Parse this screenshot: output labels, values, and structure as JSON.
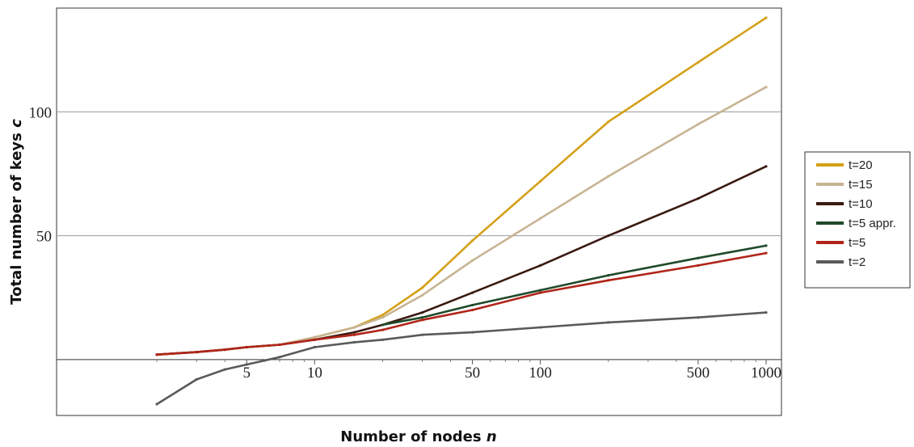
{
  "chart_data": {
    "type": "line",
    "title": "",
    "xlabel": "Number of nodes",
    "xlabel_var": "n",
    "ylabel": "Total number of keys",
    "ylabel_var": "c",
    "xscale": "log",
    "xlim": [
      1,
      1000
    ],
    "ylim": [
      -18,
      137
    ],
    "x_ticks": [
      5,
      10,
      50,
      100,
      500,
      1000
    ],
    "x_tick_labels": [
      "5",
      "10",
      "50",
      "100",
      "500",
      "1000"
    ],
    "y_ticks": [
      50,
      100
    ],
    "y_tick_labels": [
      "50",
      "100"
    ],
    "grid": "horizontal lines at y ticks",
    "legend_position": "right",
    "series": [
      {
        "name": "t=20",
        "color": "#d4a017",
        "points": [
          [
            2,
            2
          ],
          [
            3,
            3
          ],
          [
            4,
            4
          ],
          [
            5,
            5
          ],
          [
            7,
            6
          ],
          [
            10,
            9
          ],
          [
            15,
            13
          ],
          [
            20,
            18
          ],
          [
            30,
            29
          ],
          [
            50,
            48
          ],
          [
            100,
            72
          ],
          [
            200,
            96
          ],
          [
            500,
            120
          ],
          [
            1000,
            138
          ]
        ]
      },
      {
        "name": "t=15",
        "color": "#c8b493",
        "points": [
          [
            2,
            2
          ],
          [
            3,
            3
          ],
          [
            4,
            4
          ],
          [
            5,
            5
          ],
          [
            7,
            6
          ],
          [
            10,
            9
          ],
          [
            15,
            13
          ],
          [
            20,
            17
          ],
          [
            30,
            26
          ],
          [
            50,
            40
          ],
          [
            100,
            57
          ],
          [
            200,
            74
          ],
          [
            500,
            95
          ],
          [
            1000,
            110
          ]
        ]
      },
      {
        "name": "t=10",
        "color": "#3b1a12",
        "points": [
          [
            2,
            2
          ],
          [
            3,
            3
          ],
          [
            4,
            4
          ],
          [
            5,
            5
          ],
          [
            7,
            6
          ],
          [
            10,
            8
          ],
          [
            15,
            11
          ],
          [
            20,
            14
          ],
          [
            30,
            19
          ],
          [
            50,
            27
          ],
          [
            100,
            38
          ],
          [
            200,
            50
          ],
          [
            500,
            65
          ],
          [
            1000,
            78
          ]
        ]
      },
      {
        "name": "t=5 appr.",
        "color": "#1f4a2a",
        "points": [
          [
            20,
            14
          ],
          [
            30,
            17
          ],
          [
            50,
            22
          ],
          [
            100,
            28
          ],
          [
            200,
            34
          ],
          [
            500,
            41
          ],
          [
            1000,
            46
          ]
        ]
      },
      {
        "name": "t=5",
        "color": "#b02418",
        "points": [
          [
            2,
            2
          ],
          [
            3,
            3
          ],
          [
            4,
            4
          ],
          [
            5,
            5
          ],
          [
            7,
            6
          ],
          [
            10,
            8
          ],
          [
            15,
            10
          ],
          [
            20,
            12
          ],
          [
            30,
            16
          ],
          [
            50,
            20
          ],
          [
            100,
            27
          ],
          [
            200,
            32
          ],
          [
            500,
            38
          ],
          [
            1000,
            43
          ]
        ]
      },
      {
        "name": "t=2",
        "color": "#5a5a5a",
        "points": [
          [
            2,
            -18
          ],
          [
            3,
            -8
          ],
          [
            4,
            -4
          ],
          [
            5,
            -2
          ],
          [
            7,
            1
          ],
          [
            10,
            5
          ],
          [
            15,
            7
          ],
          [
            20,
            8
          ],
          [
            30,
            10
          ],
          [
            50,
            11
          ],
          [
            100,
            13
          ],
          [
            200,
            15
          ],
          [
            500,
            17
          ],
          [
            1000,
            19
          ]
        ]
      }
    ]
  }
}
